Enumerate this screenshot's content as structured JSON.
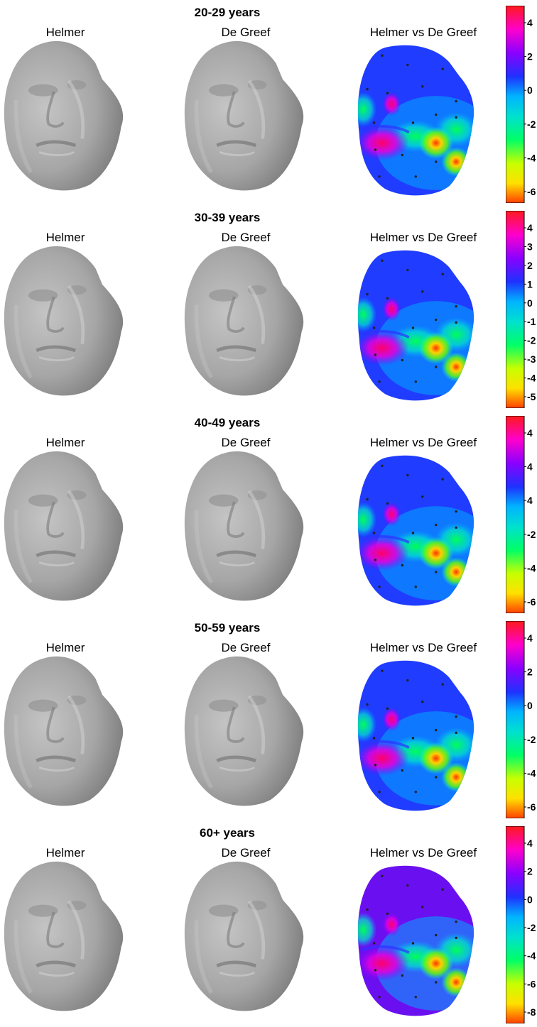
{
  "columns": [
    "Helmer",
    "De Greef",
    "Helmer vs De Greef"
  ],
  "panels": [
    {
      "age_group": "20-29 years",
      "colorbar_ticks": [
        "4",
        "2",
        "0",
        "-2",
        "-4",
        "-6"
      ]
    },
    {
      "age_group": "30-39 years",
      "colorbar_ticks": [
        "4",
        "3",
        "2",
        "1",
        "0",
        "-1",
        "-2",
        "-3",
        "-4",
        "-5"
      ]
    },
    {
      "age_group": "40-49 years",
      "colorbar_ticks": [
        "4",
        "4",
        "4",
        "-2",
        "-4",
        "-6"
      ]
    },
    {
      "age_group": "50-59 years",
      "colorbar_ticks": [
        "4",
        "2",
        "0",
        "-2",
        "-4",
        "-6"
      ]
    },
    {
      "age_group": "60+ years",
      "colorbar_ticks": [
        "4",
        "2",
        "0",
        "-2",
        "-4",
        "-6",
        "-8"
      ]
    }
  ],
  "colors": {
    "face_gray": "#a9a9a9",
    "colormap": [
      "#ff1a1a",
      "#ff00cc",
      "#8a00ff",
      "#1e32ff",
      "#00b4ff",
      "#00e0d0",
      "#00ff66",
      "#c8ff00",
      "#ffe000",
      "#ff4000"
    ]
  }
}
